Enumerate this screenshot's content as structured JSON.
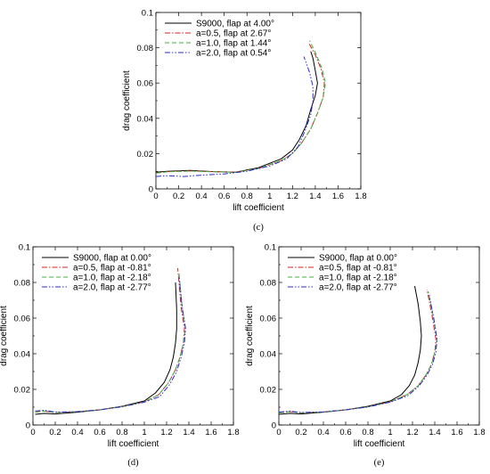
{
  "colors": {
    "black": "#000000",
    "red": "#d62020",
    "green": "#3cb43c",
    "blue": "#2a2ad2"
  },
  "chart_data": [
    {
      "type": "line",
      "panel_label": "(c)",
      "xlabel": "lift coefficient",
      "ylabel": "drag coefficient",
      "xlim": [
        0,
        1.8
      ],
      "ylim": [
        0,
        0.1
      ],
      "xticks": [
        "0",
        "0.2",
        "0.4",
        "0.6",
        "0.8",
        "1",
        "1.2",
        "1.4",
        "1.6",
        "1.8"
      ],
      "yticks": [
        "0",
        "0.02",
        "0.04",
        "0.06",
        "0.08",
        "0.1"
      ],
      "legend_position": "top-left",
      "series": [
        {
          "name": "S9000, flap at 4.00°",
          "color": "#000000",
          "dash": "solid",
          "x": [
            0.0,
            0.1,
            0.3,
            0.5,
            0.7,
            0.9,
            1.1,
            1.2,
            1.26,
            1.32,
            1.36,
            1.4,
            1.42,
            1.4,
            1.38,
            1.36
          ],
          "y": [
            0.0095,
            0.01,
            0.0105,
            0.0098,
            0.0095,
            0.012,
            0.017,
            0.022,
            0.028,
            0.036,
            0.045,
            0.053,
            0.06,
            0.067,
            0.074,
            0.078
          ]
        },
        {
          "name": "a=0.5, flap at 2.67°",
          "color": "#d62020",
          "dash": "dashdot",
          "x": [
            0.0,
            0.1,
            0.3,
            0.5,
            0.7,
            0.9,
            1.1,
            1.2,
            1.28,
            1.36,
            1.42,
            1.47,
            1.48,
            1.45,
            1.4,
            1.34
          ],
          "y": [
            0.009,
            0.0098,
            0.0102,
            0.0098,
            0.0095,
            0.0115,
            0.016,
            0.02,
            0.026,
            0.034,
            0.043,
            0.052,
            0.06,
            0.068,
            0.076,
            0.083
          ]
        },
        {
          "name": "a=1.0, flap at 1.44°",
          "color": "#3cb43c",
          "dash": "dashed",
          "x": [
            0.0,
            0.1,
            0.3,
            0.5,
            0.7,
            0.9,
            1.1,
            1.2,
            1.28,
            1.36,
            1.42,
            1.47,
            1.49,
            1.46,
            1.41,
            1.35
          ],
          "y": [
            0.009,
            0.0097,
            0.0101,
            0.0097,
            0.0094,
            0.0115,
            0.016,
            0.02,
            0.026,
            0.034,
            0.043,
            0.052,
            0.06,
            0.068,
            0.076,
            0.084
          ]
        },
        {
          "name": "a=2.0, flap at 0.54°",
          "color": "#2a2ad2",
          "dash": "dashdotdot",
          "x": [
            0.0,
            0.1,
            0.25,
            0.4,
            0.6,
            0.8,
            1.0,
            1.15,
            1.25,
            1.31,
            1.36,
            1.38,
            1.38,
            1.35,
            1.3
          ],
          "y": [
            0.007,
            0.0075,
            0.007,
            0.0078,
            0.0085,
            0.01,
            0.013,
            0.017,
            0.024,
            0.033,
            0.042,
            0.05,
            0.058,
            0.066,
            0.075
          ]
        }
      ]
    },
    {
      "type": "line",
      "panel_label": "(d)",
      "xlabel": "lift coefficient",
      "ylabel": "drag coefficient",
      "xlim": [
        0,
        1.8
      ],
      "ylim": [
        0,
        0.1
      ],
      "xticks": [
        "0",
        "0.2",
        "0.4",
        "0.6",
        "0.8",
        "1",
        "1.2",
        "1.4",
        "1.6",
        "1.8"
      ],
      "yticks": [
        "0",
        "0.02",
        "0.04",
        "0.06",
        "0.08",
        "0.1"
      ],
      "legend_position": "top-left",
      "series": [
        {
          "name": "S9000, flap at 0.00°",
          "color": "#000000",
          "dash": "solid",
          "x": [
            0.02,
            0.1,
            0.2,
            0.4,
            0.6,
            0.8,
            1.0,
            1.1,
            1.18,
            1.23,
            1.26,
            1.28,
            1.29,
            1.29,
            1.28
          ],
          "y": [
            0.006,
            0.0065,
            0.0062,
            0.0072,
            0.0085,
            0.0105,
            0.0135,
            0.018,
            0.024,
            0.031,
            0.038,
            0.046,
            0.054,
            0.065,
            0.08
          ]
        },
        {
          "name": "a=0.5, flap at -0.81°",
          "color": "#d62020",
          "dash": "dashdot",
          "x": [
            0.02,
            0.1,
            0.2,
            0.4,
            0.6,
            0.8,
            1.0,
            1.13,
            1.22,
            1.28,
            1.32,
            1.35,
            1.36,
            1.33,
            1.3
          ],
          "y": [
            0.0072,
            0.0078,
            0.007,
            0.0075,
            0.0085,
            0.0103,
            0.013,
            0.017,
            0.024,
            0.031,
            0.038,
            0.046,
            0.054,
            0.066,
            0.088
          ]
        },
        {
          "name": "a=1.0, flap at -2.18°",
          "color": "#3cb43c",
          "dash": "dashed",
          "x": [
            0.02,
            0.1,
            0.2,
            0.4,
            0.6,
            0.8,
            1.0,
            1.13,
            1.22,
            1.28,
            1.32,
            1.35,
            1.37,
            1.34,
            1.31
          ],
          "y": [
            0.0072,
            0.0078,
            0.007,
            0.0075,
            0.0085,
            0.0103,
            0.013,
            0.017,
            0.024,
            0.031,
            0.038,
            0.046,
            0.054,
            0.066,
            0.086
          ]
        },
        {
          "name": "a=2.0, flap at -2.77°",
          "color": "#2a2ad2",
          "dash": "dashdotdot",
          "x": [
            0.02,
            0.1,
            0.2,
            0.4,
            0.6,
            0.8,
            1.0,
            1.14,
            1.23,
            1.29,
            1.33,
            1.36,
            1.37,
            1.34,
            1.31
          ],
          "y": [
            0.0078,
            0.0083,
            0.0072,
            0.0075,
            0.0085,
            0.0102,
            0.0128,
            0.016,
            0.023,
            0.03,
            0.038,
            0.046,
            0.054,
            0.066,
            0.084
          ]
        }
      ]
    },
    {
      "type": "line",
      "panel_label": "(e)",
      "xlabel": "lift coefficient",
      "ylabel": "drag coefficient",
      "xlim": [
        0,
        1.8
      ],
      "ylim": [
        0,
        0.1
      ],
      "xticks": [
        "0",
        "0.2",
        "0.4",
        "0.6",
        "0.8",
        "1",
        "1.2",
        "1.4",
        "1.6",
        "1.8"
      ],
      "yticks": [
        "0",
        "0.02",
        "0.04",
        "0.06",
        "0.08",
        "0.1"
      ],
      "legend_position": "top-left",
      "series": [
        {
          "name": "S9000, flap at 0.00°",
          "color": "#000000",
          "dash": "solid",
          "x": [
            0.0,
            0.1,
            0.2,
            0.4,
            0.6,
            0.8,
            1.0,
            1.1,
            1.17,
            1.22,
            1.25,
            1.27,
            1.28,
            1.27,
            1.25,
            1.22
          ],
          "y": [
            0.006,
            0.0065,
            0.0062,
            0.0072,
            0.0085,
            0.0105,
            0.0135,
            0.017,
            0.022,
            0.028,
            0.035,
            0.042,
            0.05,
            0.058,
            0.068,
            0.078
          ]
        },
        {
          "name": "a=0.5, flap at -0.81°",
          "color": "#d62020",
          "dash": "dashdot",
          "x": [
            0.0,
            0.1,
            0.2,
            0.4,
            0.6,
            0.8,
            1.0,
            1.15,
            1.25,
            1.32,
            1.37,
            1.4,
            1.41,
            1.38,
            1.33
          ],
          "y": [
            0.0068,
            0.0075,
            0.0068,
            0.0073,
            0.0085,
            0.0102,
            0.013,
            0.017,
            0.022,
            0.028,
            0.034,
            0.041,
            0.048,
            0.06,
            0.076
          ]
        },
        {
          "name": "a=1.0, flap at -2.18°",
          "color": "#3cb43c",
          "dash": "dashed",
          "x": [
            0.0,
            0.1,
            0.2,
            0.4,
            0.6,
            0.8,
            1.0,
            1.15,
            1.25,
            1.32,
            1.37,
            1.4,
            1.42,
            1.39,
            1.34
          ],
          "y": [
            0.0068,
            0.0075,
            0.0068,
            0.0073,
            0.0085,
            0.0102,
            0.013,
            0.017,
            0.022,
            0.028,
            0.034,
            0.041,
            0.048,
            0.06,
            0.075
          ]
        },
        {
          "name": "a=2.0, flap at -2.77°",
          "color": "#2a2ad2",
          "dash": "dashdotdot",
          "x": [
            0.0,
            0.1,
            0.2,
            0.4,
            0.6,
            0.8,
            1.0,
            1.16,
            1.26,
            1.33,
            1.38,
            1.41,
            1.42,
            1.39,
            1.35
          ],
          "y": [
            0.0072,
            0.0078,
            0.007,
            0.0074,
            0.0085,
            0.0101,
            0.0128,
            0.0165,
            0.022,
            0.028,
            0.034,
            0.041,
            0.048,
            0.06,
            0.073
          ]
        }
      ]
    }
  ]
}
